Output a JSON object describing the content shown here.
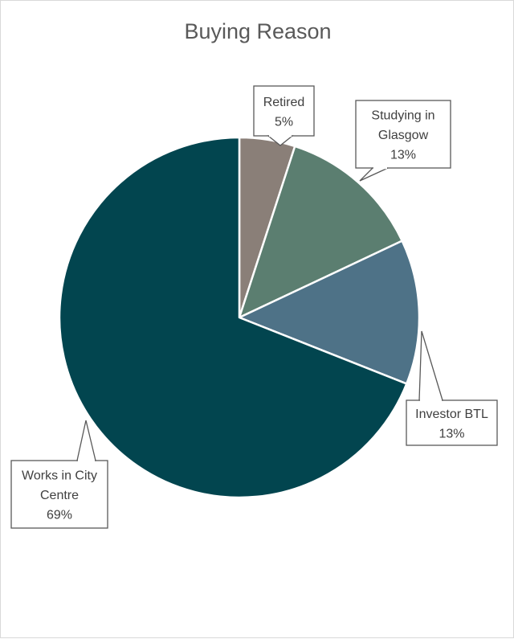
{
  "chart_data": {
    "type": "pie",
    "title": "Buying Reason",
    "slices": [
      {
        "label": "Retired",
        "value": 5,
        "percent_label": "5%",
        "color": "#8a7f78"
      },
      {
        "label": "Studying in Glasgow",
        "value": 13,
        "percent_label": "13%",
        "color": "#5b7e70"
      },
      {
        "label": "Investor BTL",
        "value": 13,
        "percent_label": "13%",
        "color": "#4e7287"
      },
      {
        "label": "Works in City Centre",
        "value": 69,
        "percent_label": "69%",
        "color": "#02454f"
      }
    ],
    "label_lines": [
      [
        "Retired",
        "5%"
      ],
      [
        "Studying in",
        "Glasgow",
        "13%"
      ],
      [
        "Investor BTL",
        "13%"
      ],
      [
        "Works in City",
        "Centre",
        "69%"
      ]
    ],
    "start_angle_deg": 0,
    "direction": "clockwise",
    "legend": "none"
  }
}
